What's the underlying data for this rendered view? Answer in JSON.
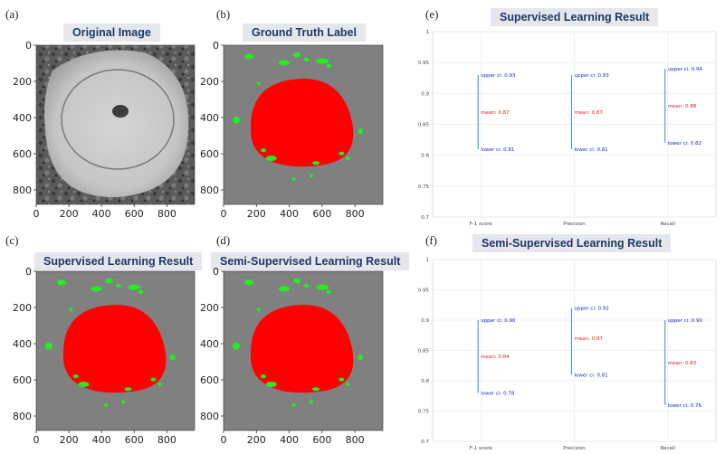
{
  "panels": [
    {
      "letter": "(a)",
      "title": "Original Image",
      "kind": "original"
    },
    {
      "letter": "(b)",
      "title": "Ground Truth Label",
      "kind": "mask"
    },
    {
      "letter": "(c)",
      "title": "Supervised Learning Result",
      "kind": "mask"
    },
    {
      "letter": "(d)",
      "title": "Semi-Supervised Learning Result",
      "kind": "mask"
    }
  ],
  "image_axes": {
    "y_ticks": [
      "0",
      "200",
      "400",
      "600",
      "800"
    ],
    "x_ticks": [
      "0",
      "200",
      "400",
      "600",
      "800"
    ]
  },
  "colors": {
    "mask_background": "#808080",
    "nucleus": "#ff0000",
    "speckles": "#22ee22",
    "ci_line": "#4a90d9",
    "ci_text": "#2222cc",
    "mean_text": "#dd2222",
    "title_text": "#1f3864",
    "title_bg": "#e5e7ed"
  },
  "ci_charts": [
    {
      "letter": "(e)",
      "title": "Supervised Learning Result",
      "chart_data": {
        "type": "errorbar",
        "categories": [
          "F-1 score",
          "Precision",
          "Recall"
        ],
        "ylim": [
          0.7,
          1.0
        ],
        "y_ticks": [
          "1",
          "0.95",
          "0.9",
          "0.85",
          "0.8",
          "0.75",
          "0.7"
        ],
        "upper": [
          0.93,
          0.93,
          0.94
        ],
        "mean": [
          0.87,
          0.87,
          0.88
        ],
        "lower": [
          0.81,
          0.81,
          0.82
        ],
        "upper_labels": [
          "upper ci: 0.93",
          "upper ci: 0.93",
          "upper ci: 0.94"
        ],
        "mean_labels": [
          "mean: 0.87",
          "mean: 0.87",
          "mean: 0.88"
        ],
        "lower_labels": [
          "lower ci: 0.81",
          "lower ci: 0.81",
          "lower ci: 0.82"
        ]
      }
    },
    {
      "letter": "(f)",
      "title": "Semi-Supervised Learning Result",
      "chart_data": {
        "type": "errorbar",
        "categories": [
          "F-1 score",
          "Precision",
          "Recall"
        ],
        "ylim": [
          0.7,
          1.0
        ],
        "y_ticks": [
          "1",
          "0.95",
          "0.9",
          "0.85",
          "0.8",
          "0.75",
          "0.7"
        ],
        "upper": [
          0.9,
          0.92,
          0.9
        ],
        "mean": [
          0.84,
          0.87,
          0.83
        ],
        "lower": [
          0.78,
          0.81,
          0.76
        ],
        "upper_labels": [
          "upper ci: 0.90",
          "upper ci: 0.92",
          "upper ci: 0.90"
        ],
        "mean_labels": [
          "mean: 0.84",
          "mean: 0.87",
          "mean: 0.83"
        ],
        "lower_labels": [
          "lower ci: 0.78",
          "lower ci: 0.81",
          "lower ci: 0.76"
        ]
      }
    }
  ]
}
